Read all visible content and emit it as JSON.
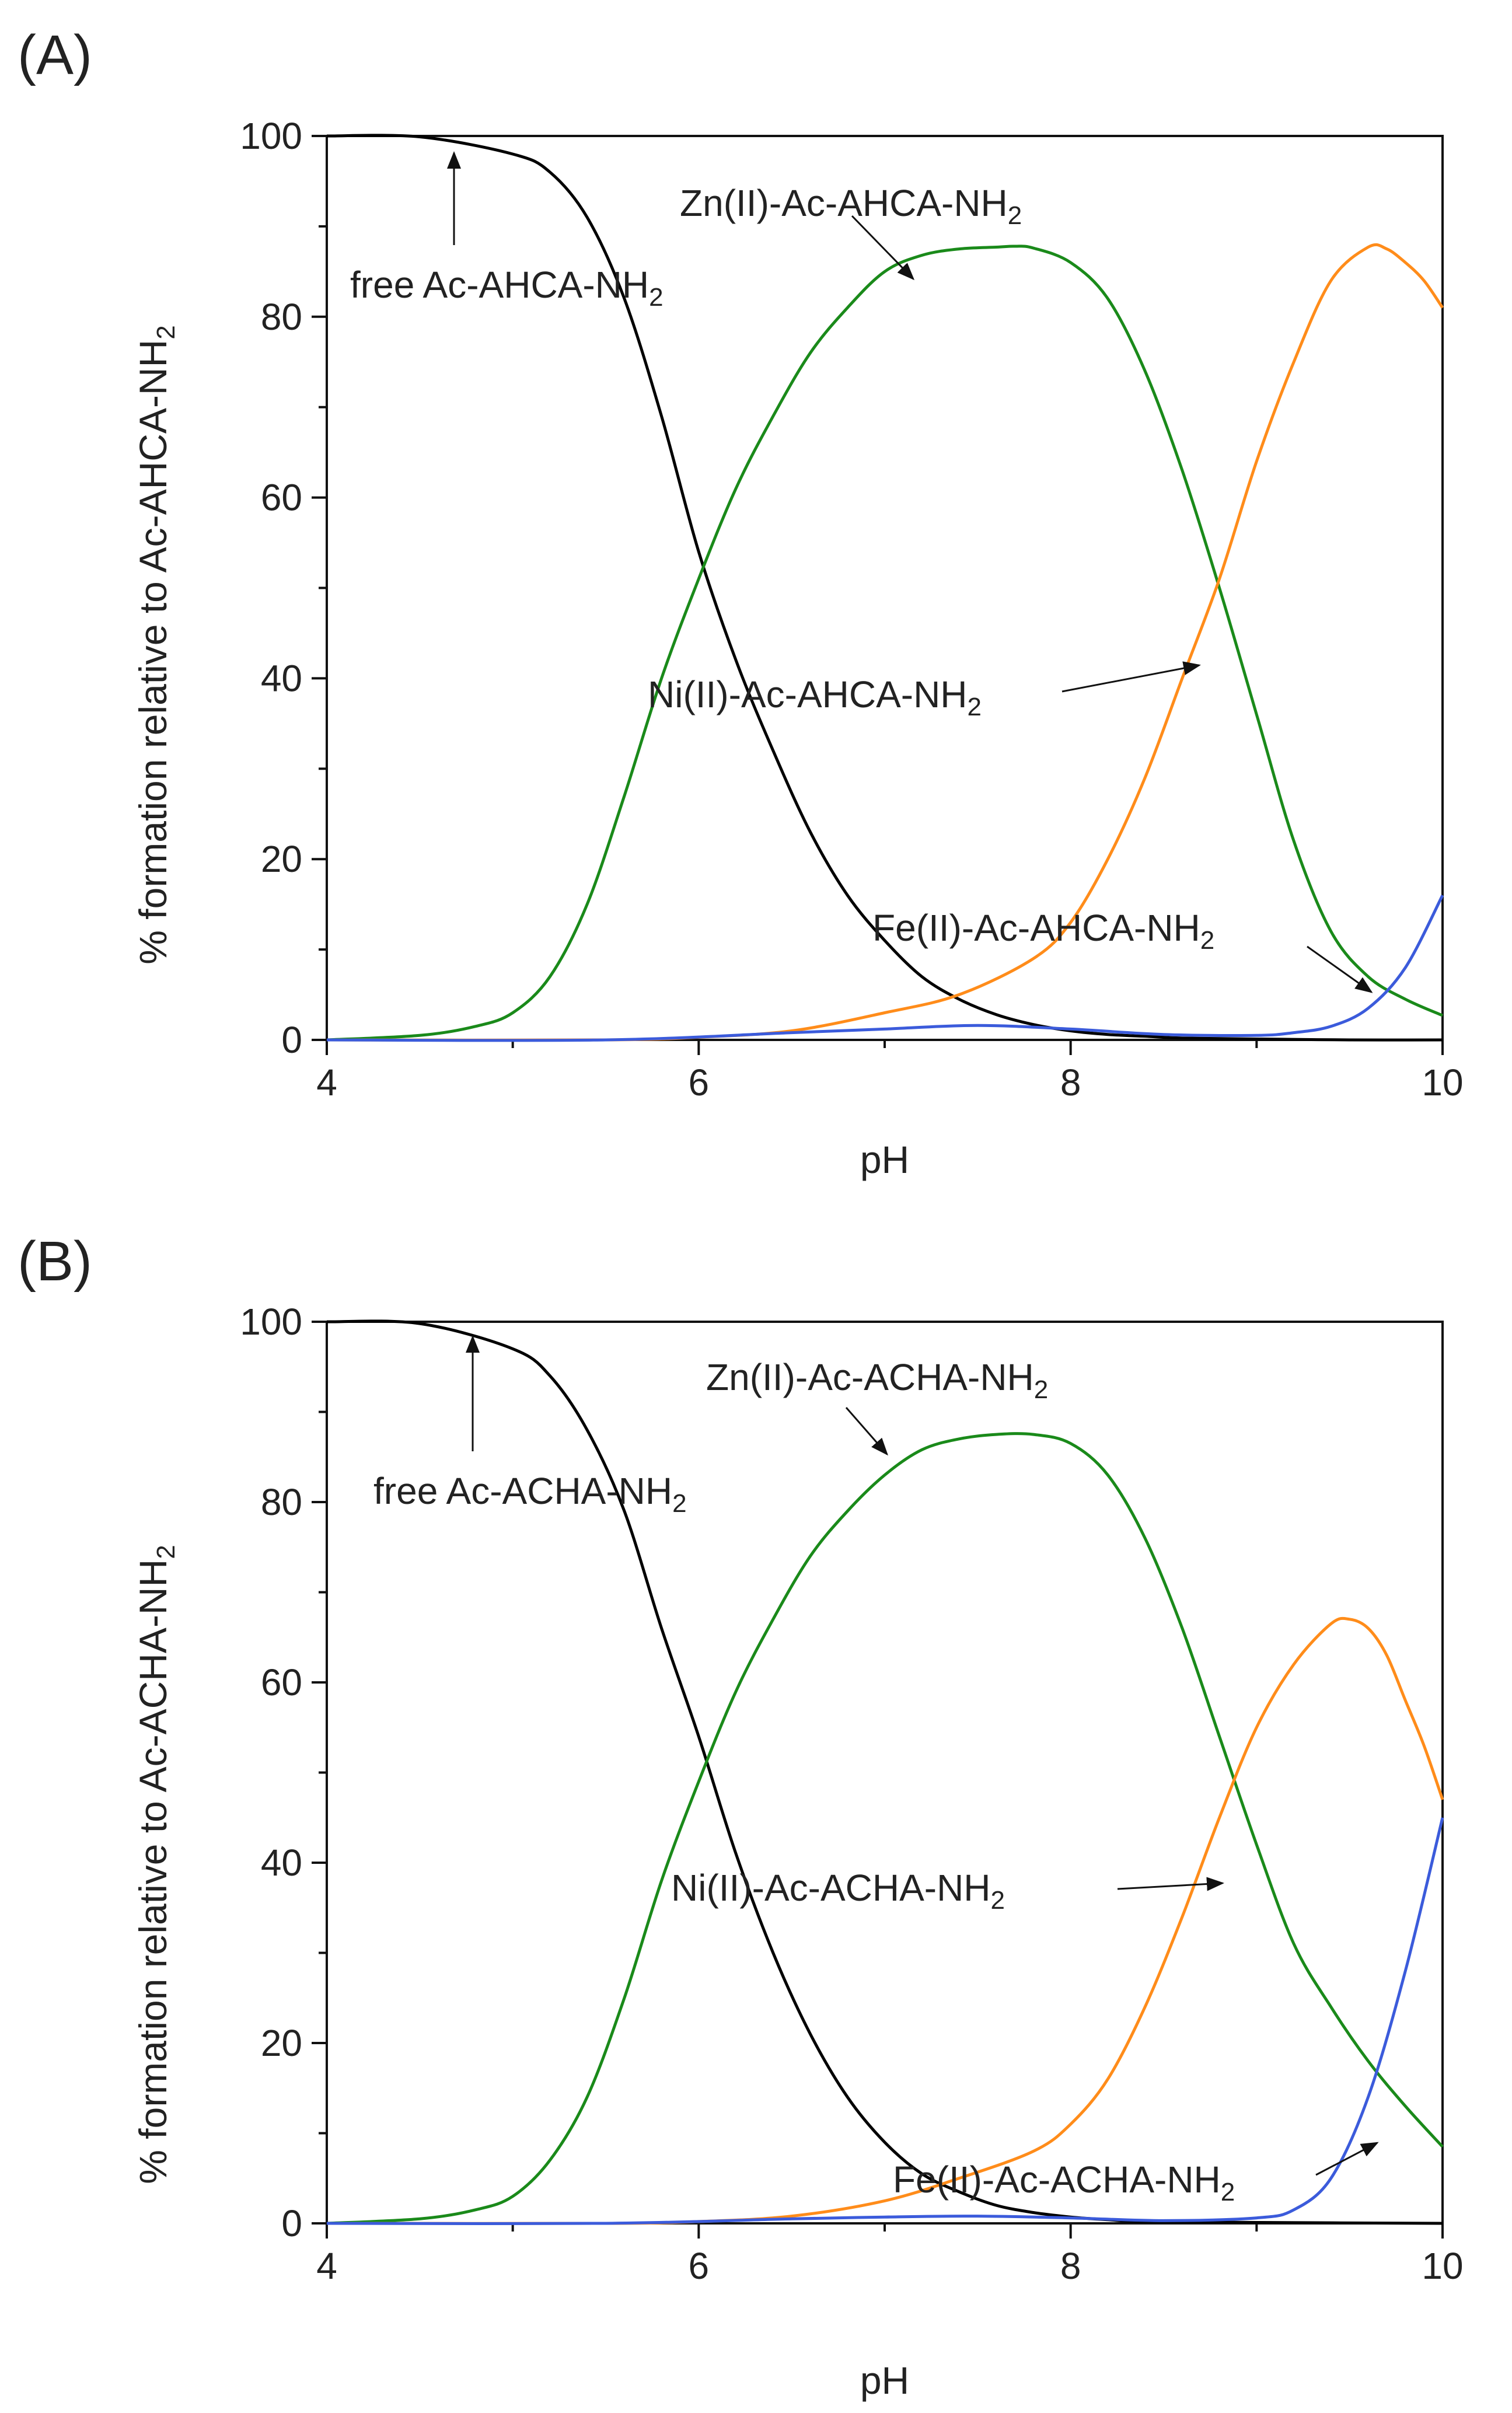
{
  "chart_data": [
    {
      "type": "line",
      "panel_label": "(A)",
      "xlabel": "pH",
      "ylabel_main": "% formation relative to Ac-AHCA-NH",
      "ylabel_sub": "2",
      "xlim": [
        4,
        10
      ],
      "ylim": [
        0,
        100
      ],
      "x_ticks": [
        "4",
        "6",
        "8",
        "10"
      ],
      "y_ticks": [
        "0",
        "20",
        "40",
        "60",
        "80",
        "100"
      ],
      "series": [
        {
          "name": "free Ac-AHCA-NH2",
          "color": "#000000",
          "x": [
            4.0,
            4.5,
            5.0,
            5.2,
            5.4,
            5.6,
            5.8,
            6.0,
            6.2,
            6.4,
            6.6,
            6.8,
            7.0,
            7.2,
            7.4,
            7.6,
            7.8,
            8.0,
            8.2,
            8.4,
            8.6,
            9.0,
            9.5,
            10.0
          ],
          "y": [
            100,
            99.9,
            98,
            96,
            91,
            82,
            69,
            54,
            42,
            32,
            23,
            16,
            11,
            7,
            4.5,
            2.8,
            1.7,
            1.0,
            0.6,
            0.4,
            0.2,
            0.1,
            0,
            0
          ]
        },
        {
          "name": "Zn(II)-Ac-AHCA-NH2",
          "color": "#1a8a1a",
          "x": [
            4.0,
            4.5,
            4.8,
            5.0,
            5.2,
            5.4,
            5.6,
            5.8,
            6.0,
            6.2,
            6.4,
            6.6,
            6.8,
            7.0,
            7.2,
            7.4,
            7.6,
            7.7,
            7.8,
            8.0,
            8.2,
            8.4,
            8.6,
            8.8,
            9.0,
            9.2,
            9.4,
            9.6,
            9.8,
            10.0
          ],
          "y": [
            0,
            0.5,
            1.5,
            3,
            7,
            15,
            27,
            40,
            51,
            61,
            69,
            76,
            81,
            85,
            86.8,
            87.5,
            87.7,
            87.8,
            87.6,
            86,
            82,
            74,
            63,
            50,
            36,
            22,
            12,
            7,
            4.5,
            2.7
          ]
        },
        {
          "name": "Ni(II)-Ac-AHCA-NH2",
          "color": "#ff8c1a",
          "x": [
            4.0,
            5.5,
            6.0,
            6.5,
            7.0,
            7.4,
            7.8,
            8.0,
            8.2,
            8.4,
            8.6,
            8.8,
            9.0,
            9.2,
            9.4,
            9.6,
            9.7,
            9.8,
            9.9,
            10.0
          ],
          "y": [
            0,
            0,
            0.3,
            1,
            3,
            5,
            9,
            13,
            20,
            29,
            40,
            51,
            64,
            75,
            84,
            87.7,
            87.5,
            86,
            84,
            81
          ]
        },
        {
          "name": "Fe(II)-Ac-AHCA-NH2",
          "color": "#3b5bdb",
          "x": [
            4.0,
            5.5,
            6.5,
            7.0,
            7.5,
            8.0,
            8.5,
            9.0,
            9.2,
            9.4,
            9.6,
            9.8,
            10.0
          ],
          "y": [
            0,
            0,
            0.8,
            1.2,
            1.6,
            1.2,
            0.6,
            0.5,
            0.8,
            1.5,
            3.5,
            8,
            16
          ]
        }
      ],
      "annotations": [
        {
          "text": "free Ac-AHCA-NH",
          "sub": "2"
        },
        {
          "text": "Zn(II)-Ac-AHCA-NH",
          "sub": "2"
        },
        {
          "text": "Ni(II)-Ac-AHCA-NH",
          "sub": "2"
        },
        {
          "text": "Fe(II)-Ac-AHCA-NH",
          "sub": "2"
        }
      ]
    },
    {
      "type": "line",
      "panel_label": "(B)",
      "xlabel": "pH",
      "ylabel_main": "% formation relative to Ac-ACHA-NH",
      "ylabel_sub": "2",
      "xlim": [
        4,
        10
      ],
      "ylim": [
        0,
        100
      ],
      "x_ticks": [
        "4",
        "6",
        "8",
        "10"
      ],
      "y_ticks": [
        "0",
        "20",
        "40",
        "60",
        "80",
        "100"
      ],
      "series": [
        {
          "name": "free Ac-ACHA-NH2",
          "color": "#000000",
          "x": [
            4.0,
            4.5,
            5.0,
            5.2,
            5.4,
            5.6,
            5.8,
            6.0,
            6.2,
            6.4,
            6.6,
            6.8,
            7.0,
            7.2,
            7.4,
            7.6,
            7.8,
            8.0,
            8.2,
            8.4,
            9.0,
            10.0
          ],
          "y": [
            100,
            99.8,
            97,
            94,
            88,
            79,
            66,
            54,
            41,
            30,
            21,
            14,
            9,
            5.5,
            3.5,
            2,
            1.2,
            0.7,
            0.4,
            0.2,
            0.1,
            0
          ]
        },
        {
          "name": "Zn(II)-Ac-ACHA-NH2",
          "color": "#1a8a1a",
          "x": [
            4.0,
            4.5,
            4.8,
            5.0,
            5.2,
            5.4,
            5.6,
            5.8,
            6.0,
            6.2,
            6.4,
            6.6,
            6.8,
            7.0,
            7.2,
            7.4,
            7.6,
            7.8,
            8.0,
            8.2,
            8.4,
            8.6,
            8.8,
            9.0,
            9.2,
            9.4,
            9.6,
            9.8,
            10.0
          ],
          "y": [
            0,
            0.5,
            1.5,
            3,
            7,
            14,
            25,
            38,
            49,
            59,
            67,
            74,
            79,
            83,
            85.8,
            87,
            87.5,
            87.5,
            86.5,
            83,
            76,
            66,
            54,
            42,
            31,
            24,
            18,
            13,
            8.5
          ]
        },
        {
          "name": "Ni(II)-Ac-ACHA-NH2",
          "color": "#ff8c1a",
          "x": [
            4.0,
            5.5,
            6.0,
            6.5,
            7.0,
            7.4,
            7.8,
            8.0,
            8.2,
            8.4,
            8.6,
            8.8,
            9.0,
            9.2,
            9.4,
            9.5,
            9.6,
            9.7,
            9.8,
            9.9,
            10.0
          ],
          "y": [
            0,
            0,
            0.2,
            0.8,
            2.5,
            5,
            8,
            11,
            16,
            24,
            34,
            45,
            55,
            62,
            66.5,
            67,
            66,
            63,
            58,
            53,
            47
          ]
        },
        {
          "name": "Fe(II)-Ac-ACHA-NH2",
          "color": "#3b5bdb",
          "x": [
            4.0,
            5.5,
            6.5,
            7.0,
            7.5,
            8.0,
            8.5,
            9.0,
            9.2,
            9.4,
            9.6,
            9.8,
            10.0
          ],
          "y": [
            0,
            0,
            0.5,
            0.7,
            0.8,
            0.6,
            0.3,
            0.6,
            1.5,
            5,
            14,
            28,
            45
          ]
        }
      ],
      "annotations": [
        {
          "text": "free Ac-ACHA-NH",
          "sub": "2"
        },
        {
          "text": "Zn(II)-Ac-ACHA-NH",
          "sub": "2"
        },
        {
          "text": "Ni(II)-Ac-ACHA-NH",
          "sub": "2"
        },
        {
          "text": "Fe(II)-Ac-ACHA-NH",
          "sub": "2"
        }
      ]
    }
  ]
}
